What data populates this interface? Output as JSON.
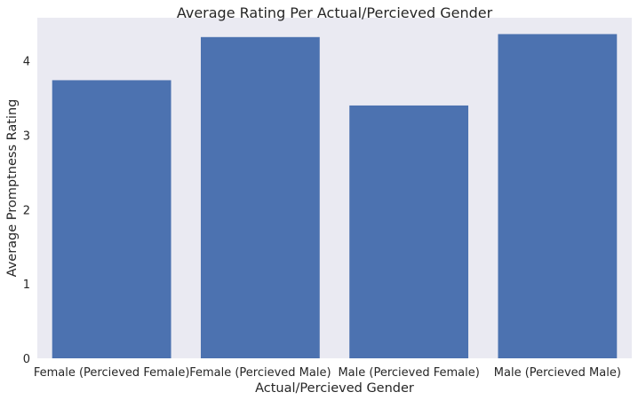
{
  "chart_data": {
    "type": "bar",
    "title": "Average Rating Per Actual/Percieved Gender",
    "xlabel": "Actual/Percieved Gender",
    "ylabel": "Average Promptness Rating",
    "categories": [
      "Female (Percieved Female)",
      "Female (Percieved Male)",
      "Male (Percieved Female)",
      "Male (Percieved Male)"
    ],
    "values": [
      3.74,
      4.32,
      3.4,
      4.36
    ],
    "ylim": [
      0,
      4.58
    ],
    "yticks": [
      "0",
      "1",
      "2",
      "3",
      "4"
    ],
    "grid": false,
    "colors": {
      "bar": "#4c72b0",
      "plot_background": "#eaeaf2"
    }
  }
}
